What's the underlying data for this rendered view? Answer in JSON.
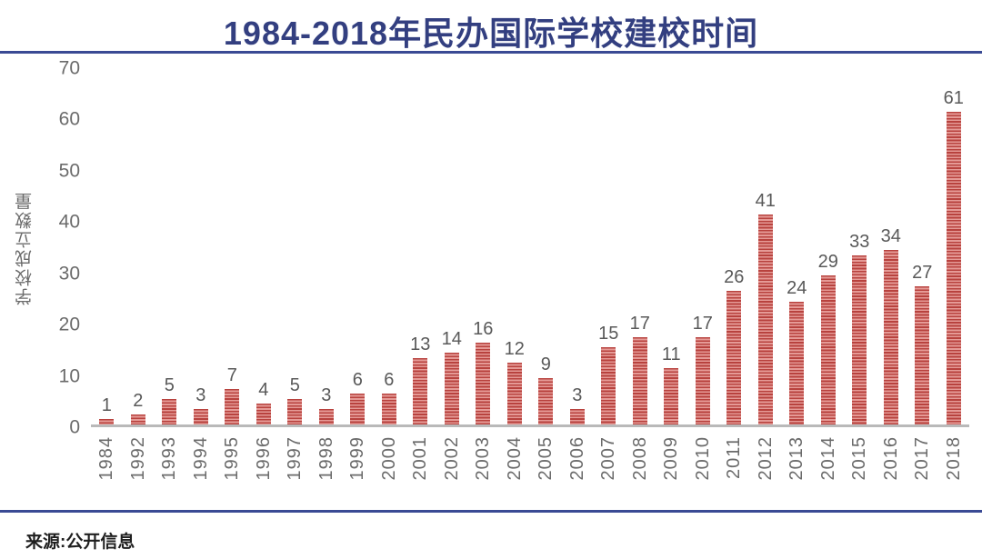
{
  "title": "1984-2018年民办国际学校建校时间",
  "source": "来源:公开信息",
  "colors": {
    "title_color": "#333f80",
    "divider_color": "#3a4a94",
    "bar_dark": "#b8423e",
    "bar_light": "#e59a96",
    "axis_line": "#b9b9b9",
    "tick_text": "#6b6b6b",
    "value_text": "#595959"
  },
  "chart_data": {
    "type": "bar",
    "title": "1984-2018年民办国际学校建校时间",
    "categories": [
      "1984",
      "1992",
      "1993",
      "1994",
      "1995",
      "1996",
      "1997",
      "1998",
      "1999",
      "2000",
      "2001",
      "2002",
      "2003",
      "2004",
      "2005",
      "2006",
      "2007",
      "2008",
      "2009",
      "2010",
      "2011",
      "2012",
      "2013",
      "2014",
      "2015",
      "2016",
      "2017",
      "2018"
    ],
    "values": [
      1,
      2,
      5,
      3,
      7,
      4,
      5,
      3,
      6,
      6,
      13,
      14,
      16,
      12,
      9,
      3,
      15,
      17,
      11,
      17,
      26,
      41,
      24,
      29,
      33,
      34,
      27,
      61
    ],
    "xlabel": "",
    "ylabel": "学校成立数量",
    "ylim": [
      0,
      70
    ],
    "yticks": [
      0,
      10,
      20,
      30,
      40,
      50,
      60,
      70
    ],
    "grid": false,
    "legend": false,
    "bar_pattern": "horizontal-stripes",
    "source": "来源:公开信息"
  }
}
